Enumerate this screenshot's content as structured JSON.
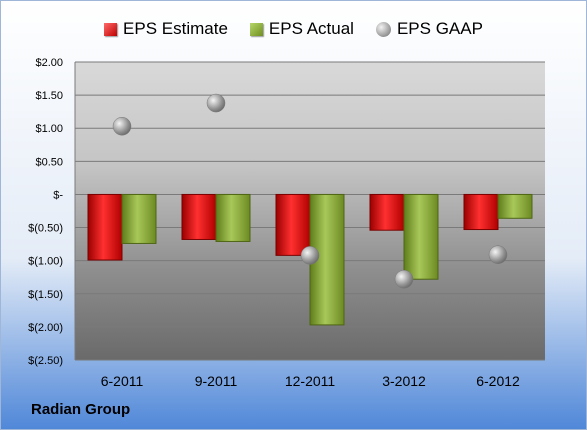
{
  "company": "Radian Group",
  "colors": {
    "estimate": "#e01010",
    "actual": "#8aa83a",
    "gaap": "#a6a6a6",
    "background_top": "#ffffff",
    "background_bottom": "#4f87d8"
  },
  "chart_data": {
    "type": "bar",
    "categories": [
      "6-2011",
      "9-2011",
      "12-2011",
      "3-2012",
      "6-2012"
    ],
    "series": [
      {
        "name": "EPS Estimate",
        "kind": "bar",
        "values": [
          -0.99,
          -0.68,
          -0.92,
          -0.54,
          -0.53
        ]
      },
      {
        "name": "EPS Actual",
        "kind": "bar",
        "values": [
          -0.74,
          -0.71,
          -1.97,
          -1.28,
          -0.36
        ]
      },
      {
        "name": "EPS GAAP",
        "kind": "marker",
        "values": [
          1.03,
          1.38,
          -0.92,
          -1.28,
          -0.91
        ]
      }
    ],
    "ylim": [
      -2.5,
      2.0
    ],
    "yticks": [
      "$2.00",
      "$1.50",
      "$1.00",
      "$0.50",
      "$-",
      "$(0.50)",
      "$(1.00)",
      "$(1.50)",
      "$(2.00)",
      "$(2.50)"
    ],
    "ytick_values": [
      2.0,
      1.5,
      1.0,
      0.5,
      0,
      -0.5,
      -1.0,
      -1.5,
      -2.0,
      -2.5
    ],
    "grid": true,
    "legend_position": "top"
  }
}
